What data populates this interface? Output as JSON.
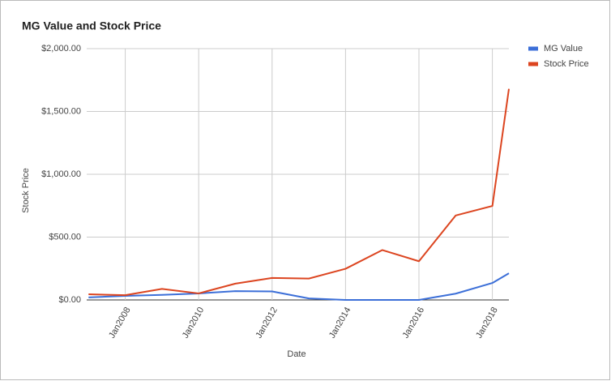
{
  "chart_data": {
    "type": "line",
    "title": "MG Value and Stock Price",
    "x_label": "Date",
    "y_label": "Stock Price",
    "x": [
      2007,
      2008,
      2009,
      2010,
      2011,
      2012,
      2013,
      2014,
      2015,
      2016,
      2017,
      2018,
      2018.45
    ],
    "series": [
      {
        "name": "MG Value",
        "color": "#3c6fd8",
        "values": [
          20,
          32,
          40,
          52,
          70,
          68,
          12,
          0,
          0,
          0,
          50,
          135,
          212
        ]
      },
      {
        "name": "Stock Price",
        "color": "#dc4520",
        "values": [
          45,
          38,
          88,
          52,
          130,
          175,
          170,
          248,
          397,
          308,
          672,
          748,
          1680
        ]
      }
    ],
    "xlim": [
      2006.95,
      2018.45
    ],
    "xticks": [
      {
        "value": 2008,
        "label": "Jan2008"
      },
      {
        "value": 2010,
        "label": "Jan2010"
      },
      {
        "value": 2012,
        "label": "Jan2012"
      },
      {
        "value": 2014,
        "label": "Jan2014"
      },
      {
        "value": 2016,
        "label": "Jan2016"
      },
      {
        "value": 2018,
        "label": "Jan2018"
      }
    ],
    "ylim": [
      0,
      2000
    ],
    "yticks": [
      {
        "value": 0,
        "label": "$0.00"
      },
      {
        "value": 500,
        "label": "$500.00"
      },
      {
        "value": 1000,
        "label": "$1,000.00"
      },
      {
        "value": 1500,
        "label": "$1,500.00"
      },
      {
        "value": 2000,
        "label": "$2,000.00"
      }
    ],
    "grid": true,
    "legend": "right"
  }
}
